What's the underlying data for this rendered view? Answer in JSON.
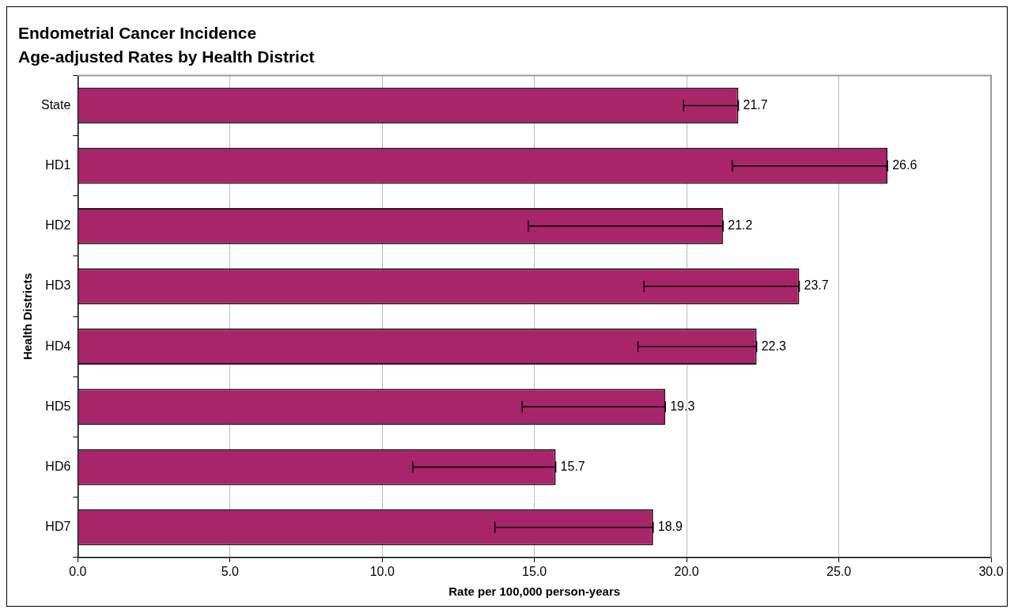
{
  "chart_data": {
    "type": "bar",
    "orientation": "horizontal",
    "title": "Endometrial Cancer Incidence",
    "subtitle": "Age-adjusted Rates by Health District",
    "xlabel": "Rate per 100,000 person-years",
    "ylabel": "Health Districts",
    "categories": [
      "State",
      "HD1",
      "HD2",
      "HD3",
      "HD4",
      "HD5",
      "HD6",
      "HD7"
    ],
    "values": [
      21.7,
      26.6,
      21.2,
      23.7,
      22.3,
      19.3,
      15.7,
      18.9
    ],
    "errors": [
      [
        19.9,
        21.7
      ],
      [
        21.5,
        26.6
      ],
      [
        14.8,
        21.2
      ],
      [
        18.6,
        23.7
      ],
      [
        18.4,
        22.3
      ],
      [
        14.6,
        19.3
      ],
      [
        11.0,
        15.7
      ],
      [
        13.7,
        18.9
      ]
    ],
    "color": "#a8246b",
    "data_labels": true,
    "grid": "x",
    "legend": false,
    "xlim": [
      0,
      30
    ],
    "xticks": [
      {
        "value": 0,
        "label": "0.0"
      },
      {
        "value": 5,
        "label": "5.0"
      },
      {
        "value": 10,
        "label": "10.0"
      },
      {
        "value": 15,
        "label": "15.0"
      },
      {
        "value": 20,
        "label": "20.0"
      },
      {
        "value": 25,
        "label": "25.0"
      },
      {
        "value": 30,
        "label": "30.0"
      }
    ]
  }
}
